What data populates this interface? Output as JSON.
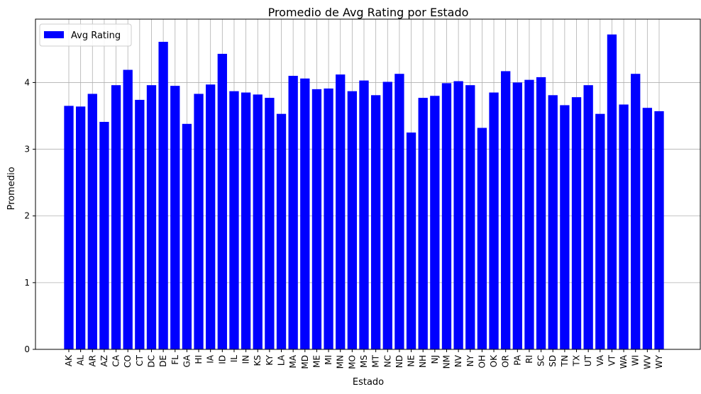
{
  "chart_data": {
    "type": "bar",
    "title": "Promedio de Avg Rating por Estado",
    "xlabel": "Estado",
    "ylabel": "Promedio",
    "ylim": [
      0,
      4.95
    ],
    "yticks": [
      0,
      1,
      2,
      3,
      4
    ],
    "grid": true,
    "legend_position": "top-left",
    "bar_color": "#0000ff",
    "categories": [
      "AK",
      "AL",
      "AR",
      "AZ",
      "CA",
      "CO",
      "CT",
      "DC",
      "DE",
      "FL",
      "GA",
      "HI",
      "IA",
      "ID",
      "IL",
      "IN",
      "KS",
      "KY",
      "LA",
      "MA",
      "MD",
      "ME",
      "MI",
      "MN",
      "MO",
      "MS",
      "MT",
      "NC",
      "ND",
      "NE",
      "NH",
      "NJ",
      "NM",
      "NV",
      "NY",
      "OH",
      "OK",
      "OR",
      "PA",
      "RI",
      "SC",
      "SD",
      "TN",
      "TX",
      "UT",
      "VA",
      "VT",
      "WA",
      "WI",
      "WV",
      "WY"
    ],
    "series": [
      {
        "name": "Avg Rating",
        "values": [
          3.65,
          3.64,
          3.83,
          3.41,
          3.96,
          4.19,
          3.74,
          3.96,
          4.61,
          3.95,
          3.38,
          3.83,
          3.97,
          4.43,
          3.87,
          3.85,
          3.82,
          3.77,
          3.53,
          4.1,
          4.06,
          3.9,
          3.91,
          4.12,
          3.87,
          4.03,
          3.81,
          4.01,
          4.13,
          3.25,
          3.77,
          3.8,
          3.99,
          4.02,
          3.96,
          3.32,
          3.85,
          4.17,
          4.0,
          4.04,
          4.08,
          3.81,
          3.66,
          3.78,
          3.96,
          3.53,
          4.72,
          3.67,
          4.13,
          3.62,
          3.57
        ]
      }
    ]
  }
}
